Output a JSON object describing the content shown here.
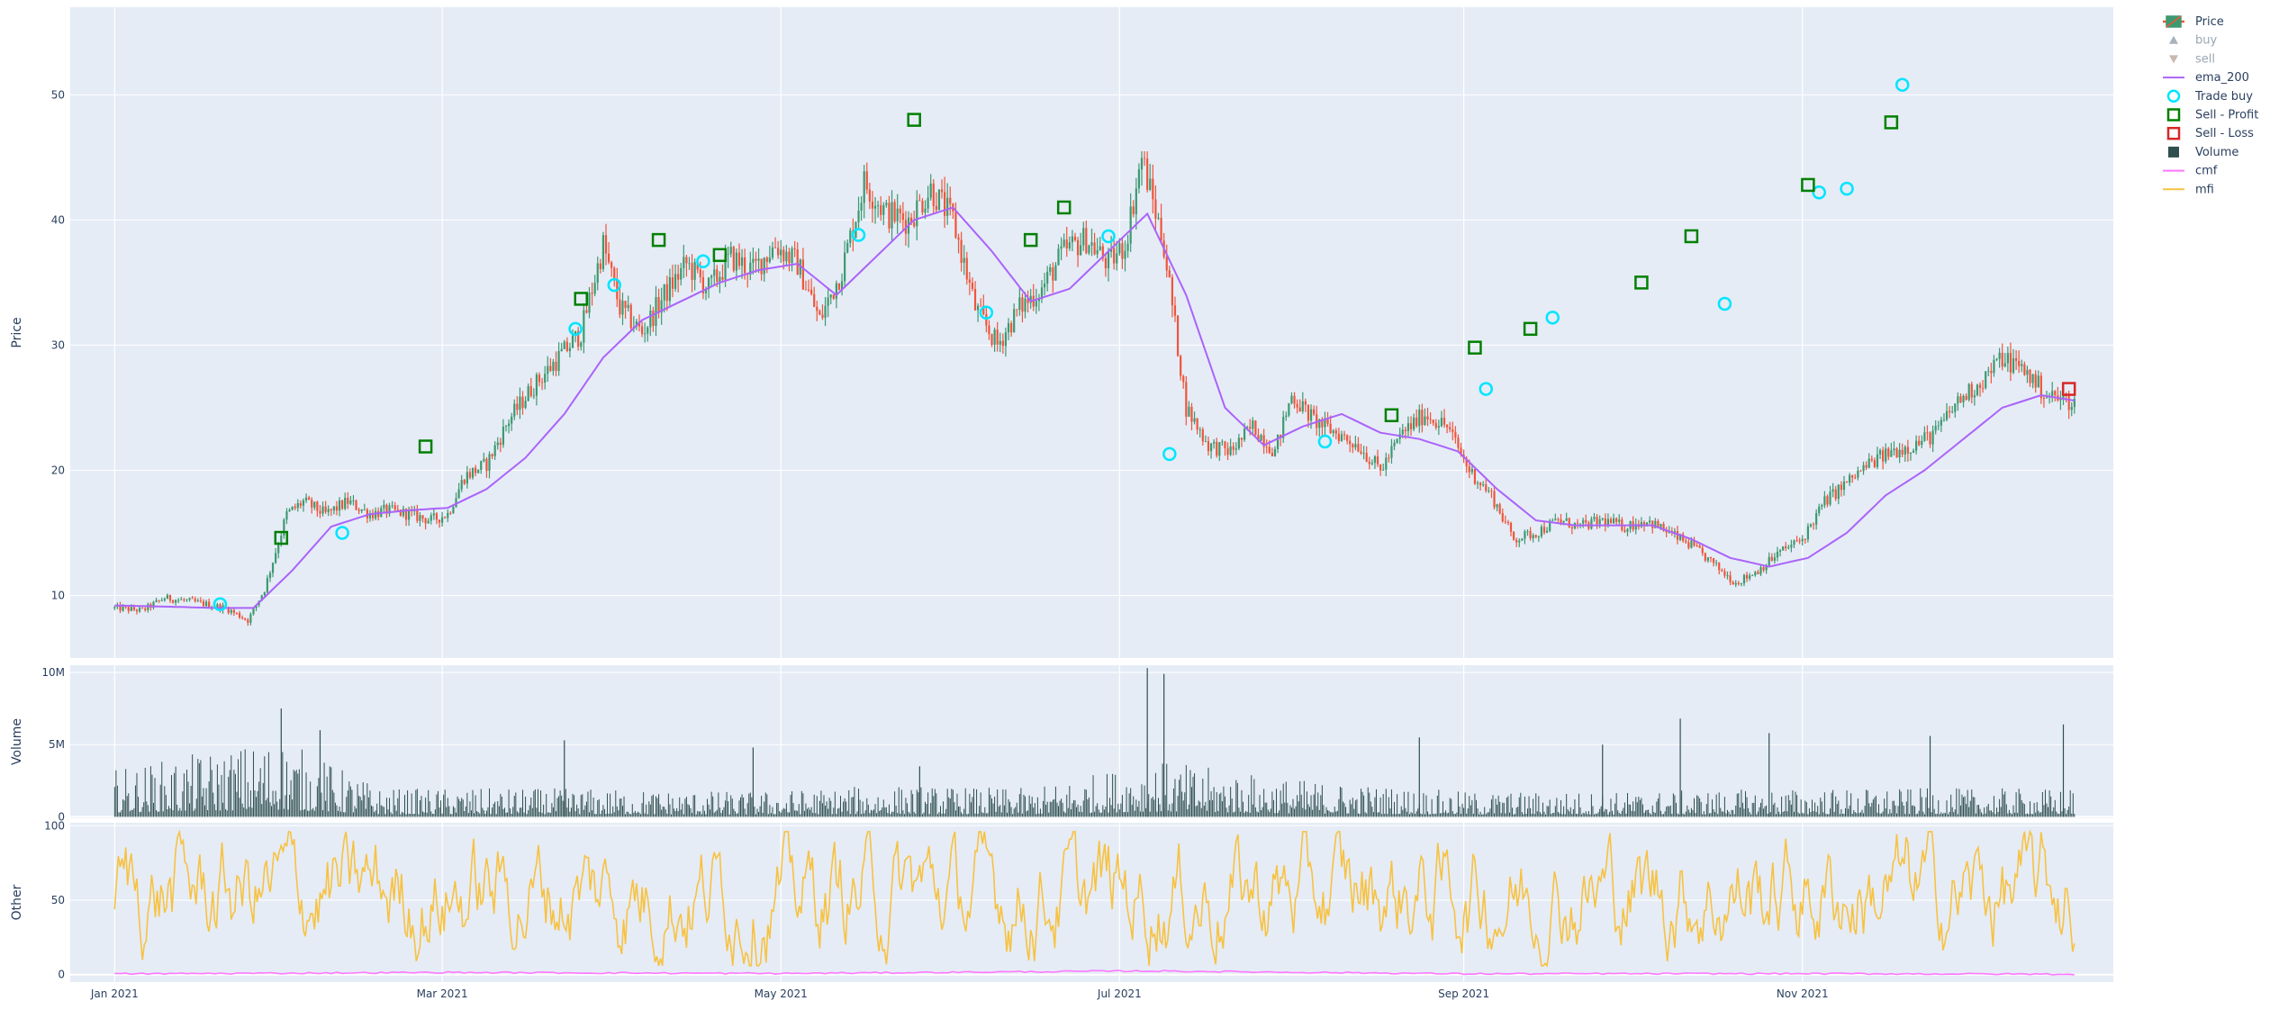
{
  "chart_data": {
    "type": "candlestick",
    "colors": {
      "increasing": "#3D9970",
      "decreasing": "#EF553B",
      "ema": "#AB63FA",
      "trade_buy": "#00E5FF",
      "sell_profit": "#008000",
      "sell_loss": "#D62728",
      "volume": "#2F4F4F",
      "cmf": "#FF77FF",
      "mfi": "#F7C242",
      "plot_bg": "#E5ECF6",
      "grid": "#FFFFFF",
      "tick_text": "#2A3F5F"
    },
    "panels": [
      {
        "id": "price",
        "ylabel": "Price",
        "ylim": [
          5,
          57
        ],
        "yticks": [
          10,
          20,
          30,
          40,
          50
        ],
        "ytick_labels": [
          "10",
          "20",
          "30",
          "40",
          "50"
        ]
      },
      {
        "id": "volume",
        "ylabel": "Volume",
        "ylim": [
          -100000,
          10500000
        ],
        "yticks": [
          0,
          5000000,
          10000000
        ],
        "ytick_labels": [
          "0",
          "5M",
          "10M"
        ]
      },
      {
        "id": "other",
        "ylabel": "Other",
        "ylim": [
          -5,
          102
        ],
        "yticks": [
          0,
          50,
          100
        ],
        "ytick_labels": [
          "0",
          "50",
          "100"
        ]
      }
    ],
    "xlim": [
      "2020-12-24",
      "2021-12-27"
    ],
    "xticks": [
      "2021-01-01",
      "2021-03-01",
      "2021-05-01",
      "2021-07-01",
      "2021-09-01",
      "2021-11-01"
    ],
    "xtick_labels": [
      "Jan 2021",
      "Mar 2021",
      "May 2021",
      "Jul 2021",
      "Sep 2021",
      "Nov 2021"
    ],
    "series": [
      {
        "name": "Price",
        "kind": "candlestick-close",
        "points": [
          [
            "2021-01-01",
            9.0
          ],
          [
            "2021-01-06",
            8.8
          ],
          [
            "2021-01-10",
            9.8
          ],
          [
            "2021-01-15",
            9.5
          ],
          [
            "2021-01-21",
            9.0
          ],
          [
            "2021-01-25",
            8.0
          ],
          [
            "2021-01-28",
            10.5
          ],
          [
            "2021-02-01",
            16.5
          ],
          [
            "2021-02-04",
            17.5
          ],
          [
            "2021-02-08",
            16.5
          ],
          [
            "2021-02-12",
            17.5
          ],
          [
            "2021-02-16",
            16.5
          ],
          [
            "2021-02-19",
            16.8
          ],
          [
            "2021-02-23",
            16.5
          ],
          [
            "2021-02-27",
            16.0
          ],
          [
            "2021-03-02",
            16.5
          ],
          [
            "2021-03-05",
            19.5
          ],
          [
            "2021-03-09",
            20.5
          ],
          [
            "2021-03-13",
            24.0
          ],
          [
            "2021-03-17",
            26.5
          ],
          [
            "2021-03-21",
            28.5
          ],
          [
            "2021-03-26",
            31.0
          ],
          [
            "2021-03-30",
            38.0
          ],
          [
            "2021-04-02",
            33.0
          ],
          [
            "2021-04-06",
            31.0
          ],
          [
            "2021-04-10",
            34.0
          ],
          [
            "2021-04-14",
            36.5
          ],
          [
            "2021-04-18",
            34.5
          ],
          [
            "2021-04-22",
            37.0
          ],
          [
            "2021-04-26",
            36.0
          ],
          [
            "2021-04-30",
            38.0
          ],
          [
            "2021-05-04",
            36.5
          ],
          [
            "2021-05-08",
            32.0
          ],
          [
            "2021-05-12",
            36.0
          ],
          [
            "2021-05-16",
            43.0
          ],
          [
            "2021-05-20",
            40.5
          ],
          [
            "2021-05-24",
            40.0
          ],
          [
            "2021-05-28",
            42.5
          ],
          [
            "2021-06-01",
            40.0
          ],
          [
            "2021-06-05",
            33.0
          ],
          [
            "2021-06-09",
            30.0
          ],
          [
            "2021-06-13",
            33.0
          ],
          [
            "2021-06-17",
            34.5
          ],
          [
            "2021-06-21",
            37.5
          ],
          [
            "2021-06-25",
            38.5
          ],
          [
            "2021-06-29",
            36.5
          ],
          [
            "2021-07-02",
            38.0
          ],
          [
            "2021-07-05",
            45.0
          ],
          [
            "2021-07-09",
            38.0
          ],
          [
            "2021-07-13",
            25.0
          ],
          [
            "2021-07-17",
            22.0
          ],
          [
            "2021-07-21",
            21.5
          ],
          [
            "2021-07-25",
            23.5
          ],
          [
            "2021-07-29",
            21.5
          ],
          [
            "2021-08-01",
            26.0
          ],
          [
            "2021-08-05",
            24.0
          ],
          [
            "2021-08-09",
            23.0
          ],
          [
            "2021-08-13",
            22.0
          ],
          [
            "2021-08-17",
            20.0
          ],
          [
            "2021-08-21",
            23.0
          ],
          [
            "2021-08-25",
            24.5
          ],
          [
            "2021-08-29",
            23.5
          ],
          [
            "2021-09-02",
            20.0
          ],
          [
            "2021-09-06",
            18.0
          ],
          [
            "2021-09-10",
            14.5
          ],
          [
            "2021-09-14",
            15.0
          ],
          [
            "2021-09-18",
            16.0
          ],
          [
            "2021-09-22",
            15.5
          ],
          [
            "2021-09-26",
            16.0
          ],
          [
            "2021-09-30",
            15.5
          ],
          [
            "2021-10-04",
            16.0
          ],
          [
            "2021-10-08",
            15.0
          ],
          [
            "2021-10-12",
            14.0
          ],
          [
            "2021-10-16",
            12.5
          ],
          [
            "2021-10-20",
            11.0
          ],
          [
            "2021-10-24",
            12.0
          ],
          [
            "2021-10-28",
            13.5
          ],
          [
            "2021-11-01",
            14.5
          ],
          [
            "2021-11-05",
            17.5
          ],
          [
            "2021-11-09",
            19.0
          ],
          [
            "2021-11-13",
            20.5
          ],
          [
            "2021-11-17",
            21.5
          ],
          [
            "2021-11-21",
            22.0
          ],
          [
            "2021-11-25",
            23.0
          ],
          [
            "2021-11-29",
            25.5
          ],
          [
            "2021-12-03",
            27.0
          ],
          [
            "2021-12-07",
            29.0
          ],
          [
            "2021-12-11",
            28.0
          ],
          [
            "2021-12-15",
            26.0
          ],
          [
            "2021-12-19",
            25.5
          ]
        ]
      },
      {
        "name": "buy",
        "kind": "legend-only",
        "points": []
      },
      {
        "name": "sell",
        "kind": "legend-only",
        "points": []
      },
      {
        "name": "ema_200",
        "kind": "line",
        "points": [
          [
            "2021-01-01",
            9.2
          ],
          [
            "2021-01-11",
            9.1
          ],
          [
            "2021-01-19",
            9.0
          ],
          [
            "2021-01-26",
            9.0
          ],
          [
            "2021-02-02",
            12.0
          ],
          [
            "2021-02-09",
            15.5
          ],
          [
            "2021-02-16",
            16.5
          ],
          [
            "2021-02-23",
            16.8
          ],
          [
            "2021-03-02",
            17.0
          ],
          [
            "2021-03-09",
            18.5
          ],
          [
            "2021-03-16",
            21.0
          ],
          [
            "2021-03-23",
            24.5
          ],
          [
            "2021-03-30",
            29.0
          ],
          [
            "2021-04-06",
            32.0
          ],
          [
            "2021-04-13",
            33.5
          ],
          [
            "2021-04-20",
            35.0
          ],
          [
            "2021-04-27",
            36.0
          ],
          [
            "2021-05-04",
            36.5
          ],
          [
            "2021-05-11",
            34.0
          ],
          [
            "2021-05-18",
            37.0
          ],
          [
            "2021-05-25",
            40.0
          ],
          [
            "2021-06-01",
            41.0
          ],
          [
            "2021-06-08",
            37.5
          ],
          [
            "2021-06-15",
            33.5
          ],
          [
            "2021-06-22",
            34.5
          ],
          [
            "2021-06-29",
            37.5
          ],
          [
            "2021-07-06",
            40.5
          ],
          [
            "2021-07-13",
            34.0
          ],
          [
            "2021-07-20",
            25.0
          ],
          [
            "2021-07-27",
            22.0
          ],
          [
            "2021-08-03",
            23.5
          ],
          [
            "2021-08-10",
            24.5
          ],
          [
            "2021-08-17",
            23.0
          ],
          [
            "2021-08-24",
            22.5
          ],
          [
            "2021-08-31",
            21.5
          ],
          [
            "2021-09-07",
            18.5
          ],
          [
            "2021-09-14",
            16.0
          ],
          [
            "2021-09-21",
            15.6
          ],
          [
            "2021-09-28",
            15.6
          ],
          [
            "2021-10-05",
            15.6
          ],
          [
            "2021-10-12",
            14.5
          ],
          [
            "2021-10-19",
            13.0
          ],
          [
            "2021-10-26",
            12.3
          ],
          [
            "2021-11-02",
            13.0
          ],
          [
            "2021-11-09",
            15.0
          ],
          [
            "2021-11-16",
            18.0
          ],
          [
            "2021-11-23",
            20.0
          ],
          [
            "2021-11-30",
            22.5
          ],
          [
            "2021-12-07",
            25.0
          ],
          [
            "2021-12-14",
            26.0
          ],
          [
            "2021-12-21",
            25.5
          ]
        ]
      },
      {
        "name": "Trade buy",
        "kind": "marker",
        "points": [
          [
            "2021-01-20",
            9.3
          ],
          [
            "2021-02-11",
            15.0
          ],
          [
            "2021-03-25",
            31.3
          ],
          [
            "2021-04-01",
            34.8
          ],
          [
            "2021-04-17",
            36.7
          ],
          [
            "2021-05-15",
            38.8
          ],
          [
            "2021-06-07",
            32.6
          ],
          [
            "2021-06-29",
            38.7
          ],
          [
            "2021-07-10",
            21.3
          ],
          [
            "2021-08-07",
            22.3
          ],
          [
            "2021-09-05",
            26.5
          ],
          [
            "2021-09-17",
            32.2
          ],
          [
            "2021-10-18",
            33.3
          ],
          [
            "2021-11-04",
            42.2
          ],
          [
            "2021-11-09",
            42.5
          ],
          [
            "2021-11-19",
            50.8
          ]
        ]
      },
      {
        "name": "Sell - Profit",
        "kind": "marker",
        "points": [
          [
            "2021-01-31",
            14.6
          ],
          [
            "2021-02-26",
            21.9
          ],
          [
            "2021-03-26",
            33.7
          ],
          [
            "2021-04-09",
            38.4
          ],
          [
            "2021-04-20",
            37.2
          ],
          [
            "2021-05-25",
            48.0
          ],
          [
            "2021-06-15",
            38.4
          ],
          [
            "2021-06-21",
            41.0
          ],
          [
            "2021-08-19",
            24.4
          ],
          [
            "2021-09-03",
            29.8
          ],
          [
            "2021-09-13",
            31.3
          ],
          [
            "2021-10-03",
            35.0
          ],
          [
            "2021-10-12",
            38.7
          ],
          [
            "2021-11-02",
            42.8
          ],
          [
            "2021-11-17",
            47.8
          ]
        ]
      },
      {
        "name": "Sell - Loss",
        "kind": "marker",
        "points": [
          [
            "2021-12-19",
            26.5
          ]
        ]
      },
      {
        "name": "Volume",
        "kind": "bars",
        "note_level": [
          [
            "2021-01-01",
            1500000
          ],
          [
            "2021-01-31",
            2500000
          ],
          [
            "2021-02-18",
            900000
          ],
          [
            "2021-03-25",
            900000
          ],
          [
            "2021-04-25",
            800000
          ],
          [
            "2021-05-20",
            1000000
          ],
          [
            "2021-06-15",
            900000
          ],
          [
            "2021-07-07",
            1800000
          ],
          [
            "2021-08-01",
            1200000
          ],
          [
            "2021-09-01",
            800000
          ],
          [
            "2021-10-01",
            800000
          ],
          [
            "2021-11-01",
            900000
          ],
          [
            "2021-12-20",
            900000
          ]
        ],
        "spikes": [
          [
            "2021-01-31",
            7500000
          ],
          [
            "2021-02-07",
            6000000
          ],
          [
            "2021-03-23",
            5300000
          ],
          [
            "2021-04-26",
            4800000
          ],
          [
            "2021-05-26",
            3500000
          ],
          [
            "2021-07-06",
            10300000
          ],
          [
            "2021-07-09",
            9900000
          ],
          [
            "2021-08-24",
            5500000
          ],
          [
            "2021-09-26",
            5000000
          ],
          [
            "2021-10-10",
            6800000
          ],
          [
            "2021-10-26",
            5800000
          ],
          [
            "2021-11-24",
            5600000
          ],
          [
            "2021-12-18",
            6400000
          ]
        ]
      },
      {
        "name": "cmf",
        "kind": "line",
        "points": [
          [
            "2021-01-01",
            0.5
          ],
          [
            "2021-03-01",
            1.5
          ],
          [
            "2021-05-01",
            0.8
          ],
          [
            "2021-07-06",
            2.5
          ],
          [
            "2021-09-01",
            0.6
          ],
          [
            "2021-11-01",
            0.7
          ],
          [
            "2021-12-20",
            0.3
          ]
        ]
      },
      {
        "name": "mfi",
        "kind": "line",
        "range": [
          5,
          95
        ]
      }
    ],
    "legend": {
      "placement": "top-right outside plot",
      "items": [
        {
          "name": "Price",
          "symbol": "candle-legend"
        },
        {
          "name": "buy",
          "symbol": "triangle-up"
        },
        {
          "name": "sell",
          "symbol": "triangle-down"
        },
        {
          "name": "ema_200",
          "symbol": "line"
        },
        {
          "name": "Trade buy",
          "symbol": "circle-open"
        },
        {
          "name": "Sell - Profit",
          "symbol": "square-open"
        },
        {
          "name": "Sell - Loss",
          "symbol": "square-open"
        },
        {
          "name": "Volume",
          "symbol": "square-filled"
        },
        {
          "name": "cmf",
          "symbol": "line"
        },
        {
          "name": "mfi",
          "symbol": "line"
        }
      ]
    }
  }
}
